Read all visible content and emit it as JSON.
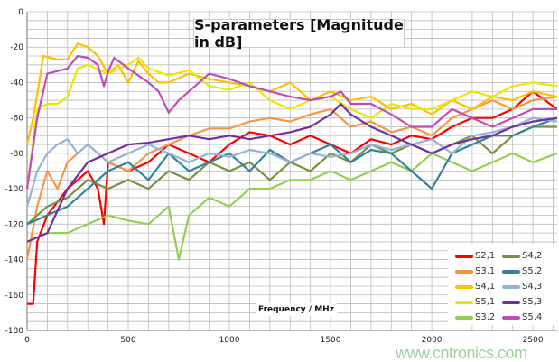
{
  "chart_data": {
    "type": "line",
    "title": "S-parameters [Magnitude in dB]",
    "xlabel": "Frequency / MHz",
    "ylabel": "",
    "xlim": [
      0,
      2620
    ],
    "ylim": [
      -180,
      0
    ],
    "x_ticks": [
      "0",
      "500",
      "1000",
      "1500",
      "2000",
      "2500"
    ],
    "y_ticks": [
      "0",
      "-20",
      "-40",
      "-60",
      "-80",
      "-100",
      "-120",
      "-140",
      "-160",
      "-180"
    ],
    "grid": true,
    "legend_placement": "bottom-right",
    "series": [
      {
        "name": "S2,1",
        "color": "#ff0000",
        "x": [
          0,
          30,
          50,
          100,
          200,
          300,
          350,
          380,
          400,
          500,
          600,
          700,
          800,
          900,
          1000,
          1100,
          1200,
          1300,
          1400,
          1500,
          1600,
          1700,
          1800,
          1900,
          2000,
          2100,
          2200,
          2300,
          2400,
          2500,
          2620
        ],
        "y": [
          -165,
          -165,
          -130,
          -115,
          -100,
          -90,
          -100,
          -120,
          -85,
          -90,
          -85,
          -75,
          -80,
          -85,
          -75,
          -68,
          -70,
          -75,
          -70,
          -75,
          -80,
          -72,
          -75,
          -70,
          -72,
          -65,
          -60,
          -60,
          -55,
          -45,
          -55
        ]
      },
      {
        "name": "S3,1",
        "color": "#f79646",
        "x": [
          0,
          50,
          100,
          150,
          200,
          300,
          400,
          500,
          550,
          600,
          700,
          800,
          900,
          1000,
          1100,
          1200,
          1300,
          1400,
          1500,
          1600,
          1700,
          1800,
          1900,
          2000,
          2100,
          2200,
          2300,
          2400,
          2500,
          2620
        ],
        "y": [
          -140,
          -110,
          -90,
          -100,
          -85,
          -75,
          -85,
          -90,
          -85,
          -80,
          -75,
          -70,
          -66,
          -66,
          -62,
          -60,
          -62,
          -58,
          -55,
          -65,
          -62,
          -68,
          -65,
          -70,
          -60,
          -55,
          -50,
          -55,
          -50,
          -48
        ]
      },
      {
        "name": "S4,1",
        "color": "#ffc000",
        "x": [
          0,
          30,
          60,
          80,
          150,
          200,
          250,
          300,
          350,
          400,
          450,
          500,
          550,
          600,
          650,
          700,
          800,
          900,
          1000,
          1100,
          1200,
          1300,
          1400,
          1500,
          1600,
          1700,
          1800,
          1900,
          2000,
          2100,
          2200,
          2300,
          2400,
          2500,
          2620
        ],
        "y": [
          -75,
          -60,
          -40,
          -25,
          -27,
          -27,
          -18,
          -20,
          -25,
          -35,
          -30,
          -40,
          -28,
          -35,
          -40,
          -40,
          -35,
          -38,
          -40,
          -42,
          -45,
          -40,
          -50,
          -45,
          -50,
          -48,
          -55,
          -52,
          -58,
          -50,
          -55,
          -48,
          -50,
          -45,
          -48
        ]
      },
      {
        "name": "S5,1",
        "color": "#e8e800",
        "x": [
          0,
          50,
          100,
          150,
          200,
          250,
          300,
          400,
          500,
          550,
          600,
          700,
          800,
          900,
          1000,
          1100,
          1200,
          1300,
          1400,
          1500,
          1600,
          1700,
          1800,
          1900,
          2000,
          2100,
          2200,
          2300,
          2400,
          2500,
          2620
        ],
        "y": [
          -100,
          -55,
          -52,
          -52,
          -48,
          -32,
          -30,
          -35,
          -30,
          -26,
          -32,
          -36,
          -33,
          -42,
          -44,
          -40,
          -50,
          -55,
          -50,
          -48,
          -55,
          -60,
          -52,
          -55,
          -55,
          -50,
          -45,
          -48,
          -42,
          -40,
          -42
        ]
      },
      {
        "name": "S3,2",
        "color": "#92d050",
        "x": [
          0,
          100,
          200,
          300,
          400,
          500,
          600,
          700,
          750,
          800,
          900,
          1000,
          1100,
          1200,
          1300,
          1400,
          1500,
          1600,
          1700,
          1800,
          1900,
          2000,
          2100,
          2200,
          2300,
          2400,
          2500,
          2620
        ],
        "y": [
          -130,
          -125,
          -125,
          -120,
          -115,
          -118,
          -120,
          -110,
          -140,
          -115,
          -105,
          -110,
          -100,
          -100,
          -95,
          -95,
          -90,
          -95,
          -90,
          -85,
          -90,
          -80,
          -85,
          -90,
          -85,
          -80,
          -85,
          -80
        ]
      },
      {
        "name": "S4,2",
        "color": "#76923c",
        "x": [
          0,
          100,
          200,
          300,
          400,
          500,
          600,
          700,
          800,
          900,
          1000,
          1100,
          1200,
          1300,
          1400,
          1500,
          1600,
          1700,
          1800,
          1900,
          2000,
          2100,
          2200,
          2300,
          2400,
          2500,
          2620
        ],
        "y": [
          -120,
          -110,
          -105,
          -95,
          -100,
          -95,
          -100,
          -90,
          -95,
          -85,
          -90,
          -85,
          -95,
          -85,
          -90,
          -80,
          -85,
          -75,
          -80,
          -75,
          -80,
          -75,
          -70,
          -80,
          -70,
          -65,
          -65
        ]
      },
      {
        "name": "S5,2",
        "color": "#31849b",
        "x": [
          0,
          100,
          200,
          300,
          400,
          500,
          600,
          700,
          800,
          900,
          1000,
          1100,
          1200,
          1300,
          1400,
          1500,
          1600,
          1700,
          1800,
          1900,
          2000,
          2100,
          2200,
          2300,
          2400,
          2500,
          2620
        ],
        "y": [
          -120,
          -115,
          -110,
          -100,
          -90,
          -85,
          -95,
          -80,
          -90,
          -85,
          -80,
          -90,
          -78,
          -85,
          -80,
          -75,
          -85,
          -78,
          -80,
          -90,
          -100,
          -80,
          -75,
          -70,
          -70,
          -65,
          -60
        ]
      },
      {
        "name": "S4,3",
        "color": "#95b3d7",
        "x": [
          0,
          50,
          100,
          150,
          200,
          250,
          300,
          400,
          500,
          600,
          700,
          800,
          900,
          1000,
          1100,
          1200,
          1300,
          1400,
          1500,
          1600,
          1700,
          1800,
          1900,
          2000,
          2100,
          2200,
          2300,
          2400,
          2500,
          2620
        ],
        "y": [
          -110,
          -90,
          -80,
          -75,
          -72,
          -80,
          -75,
          -85,
          -80,
          -75,
          -80,
          -85,
          -80,
          -82,
          -78,
          -80,
          -85,
          -80,
          -82,
          -80,
          -75,
          -78,
          -75,
          -72,
          -80,
          -70,
          -68,
          -65,
          -60,
          -62
        ]
      },
      {
        "name": "S5,3",
        "color": "#7030a0",
        "x": [
          0,
          100,
          200,
          300,
          400,
          500,
          600,
          700,
          800,
          900,
          1000,
          1100,
          1200,
          1300,
          1400,
          1500,
          1550,
          1600,
          1700,
          1800,
          1900,
          2000,
          2100,
          2200,
          2300,
          2400,
          2500,
          2620
        ],
        "y": [
          -130,
          -125,
          -100,
          -85,
          -80,
          -75,
          -74,
          -72,
          -70,
          -72,
          -70,
          -72,
          -70,
          -68,
          -65,
          -58,
          -52,
          -58,
          -65,
          -70,
          -75,
          -80,
          -75,
          -72,
          -70,
          -65,
          -62,
          -60
        ]
      },
      {
        "name": "S5,4",
        "color": "#c04cb8",
        "x": [
          0,
          50,
          80,
          100,
          200,
          250,
          300,
          350,
          380,
          400,
          430,
          500,
          600,
          650,
          700,
          750,
          800,
          900,
          1000,
          1100,
          1200,
          1300,
          1400,
          1500,
          1550,
          1600,
          1700,
          1800,
          1900,
          2000,
          2100,
          2200,
          2300,
          2400,
          2500,
          2620
        ],
        "y": [
          -100,
          -60,
          -45,
          -35,
          -32,
          -25,
          -26,
          -30,
          -42,
          -34,
          -26,
          -32,
          -40,
          -45,
          -57,
          -50,
          -45,
          -35,
          -38,
          -42,
          -45,
          -48,
          -50,
          -48,
          -45,
          -52,
          -52,
          -58,
          -65,
          -65,
          -55,
          -60,
          -65,
          -60,
          -55,
          -55
        ]
      }
    ]
  },
  "watermark": "www.cntronics.com"
}
